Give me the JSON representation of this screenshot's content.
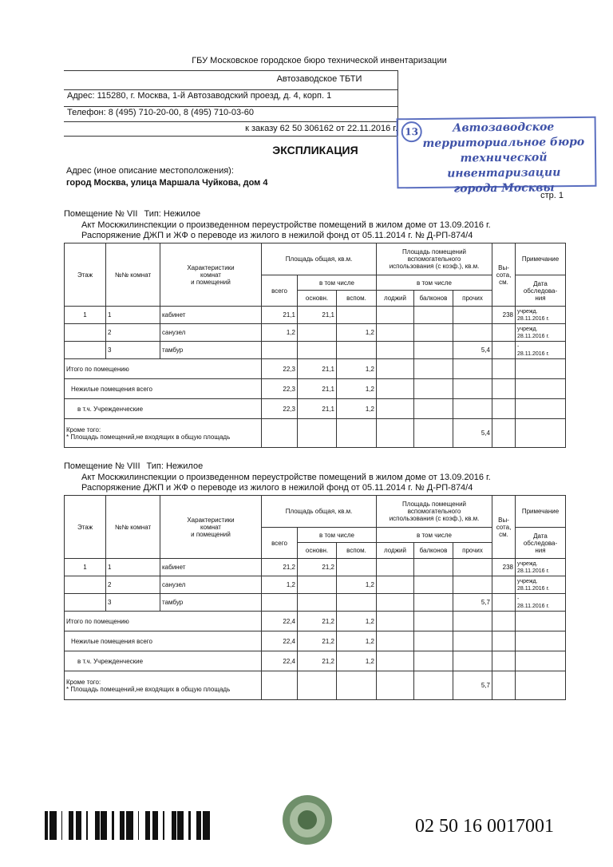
{
  "header": {
    "org": "ГБУ Московское городское бюро технической инвентаризации",
    "branch": "Автозаводское ТБТИ",
    "address": "Адрес: 115280, г. Москва, 1-й Автозаводский проезд, д. 4, корп. 1",
    "phone": "Телефон: 8 (495) 710-20-00, 8 (495) 710-03-60",
    "order": "к заказу 62 50 306162 от 22.11.2016 г."
  },
  "stamp": {
    "number": "13",
    "lines": [
      "Автозаводское",
      "территориальное бюро",
      "технической инвентаризации",
      "города Москвы"
    ]
  },
  "title": "ЭКСПЛИКАЦИЯ",
  "location": {
    "label": "Адрес (иное описание местоположения):",
    "value": "город Москва, улица Маршала Чуйкова, дом 4"
  },
  "page": "стр. 1",
  "table_header": {
    "floor": "Этаж",
    "rooms": "№№ комнат",
    "characteristics": [
      "Характеристики",
      "комнат",
      "и помещений"
    ],
    "total_area": "Площадь общая, кв.м.",
    "total_all": "всего",
    "total_incl": "в том числе",
    "main": "основн.",
    "aux": "вспом.",
    "aux_area": [
      "Площадь помещений",
      "вспомогательного",
      "использования (с коэф.), кв.м."
    ],
    "aux_incl": "в том числе",
    "loggia": "лоджий",
    "balcony": "балконов",
    "other": "прочих",
    "height": [
      "Вы-",
      "сота,",
      "см."
    ],
    "note": "Примечание",
    "survey_date": [
      "Дата",
      "обследова-",
      "ния"
    ]
  },
  "sections": [
    {
      "room": "Помещение № VII",
      "type": "Тип: Нежилое",
      "act_lines": [
        "Акт Москжилинспекции о произведенном переустройстве помещений в жилом доме от 13.09.2016 г.",
        "Распоряжение ДЖП и ЖФ о переводе из жилого в нежилой фонд от 05.11.2014 г. № Д-РП-874/4"
      ],
      "rows": [
        [
          "1",
          "1",
          "кабинет",
          "21,1",
          "21,1",
          null,
          null,
          null,
          null,
          "238",
          [
            "учрежд.",
            "28.11.2016 г."
          ]
        ],
        [
          null,
          "2",
          "санузел",
          "1,2",
          null,
          "1,2",
          null,
          null,
          null,
          null,
          [
            "учрежд.",
            "28.11.2016 г."
          ]
        ],
        [
          null,
          "3",
          "тамбур",
          null,
          null,
          null,
          null,
          null,
          "5,4",
          null,
          [
            "-",
            "28.11.2016 г."
          ]
        ]
      ],
      "totals": [
        {
          "label": [
            "Итого по помещению"
          ],
          "cells": [
            "22,3",
            "21,1",
            "1,2",
            null,
            null,
            null,
            null,
            null
          ]
        },
        {
          "label": [
            "Нежилые помещения всего"
          ],
          "cells": [
            "22,3",
            "21,1",
            "1,2",
            null,
            null,
            null,
            null,
            null
          ]
        },
        {
          "label": [
            "в т.ч. Учрежденческие"
          ],
          "cells": [
            "22,3",
            "21,1",
            "1,2",
            null,
            null,
            null,
            null,
            null
          ]
        },
        {
          "label": [
            "Кроме того:",
            "* Площадь помещений,не входящих в общую площадь"
          ],
          "cells": [
            null,
            null,
            null,
            null,
            null,
            "5,4",
            null,
            null
          ]
        }
      ]
    },
    {
      "room": "Помещение № VIII",
      "type": "Тип: Нежилое",
      "act_lines": [
        "Акт Москжилинспекции о произведенном переустройстве помещений в жилом доме от 13.09.2016 г.",
        "Распоряжение ДЖП и ЖФ о переводе из жилого в нежилой фонд от 05.11.2014 г. № Д-РП-874/4"
      ],
      "rows": [
        [
          "1",
          "1",
          "кабинет",
          "21,2",
          "21,2",
          null,
          null,
          null,
          null,
          "238",
          [
            "учрежд.",
            "28.11.2016 г."
          ]
        ],
        [
          null,
          "2",
          "санузел",
          "1,2",
          null,
          "1,2",
          null,
          null,
          null,
          null,
          [
            "учрежд.",
            "28.11.2016 г."
          ]
        ],
        [
          null,
          "3",
          "тамбур",
          null,
          null,
          null,
          null,
          null,
          "5,7",
          null,
          [
            "-",
            "28.11.2016 г."
          ]
        ]
      ],
      "totals": [
        {
          "label": [
            "Итого по помещению"
          ],
          "cells": [
            "22,4",
            "21,2",
            "1,2",
            null,
            null,
            null,
            null,
            null
          ]
        },
        {
          "label": [
            "Нежилые помещения всего"
          ],
          "cells": [
            "22,4",
            "21,2",
            "1,2",
            null,
            null,
            null,
            null,
            null
          ]
        },
        {
          "label": [
            "в т.ч. Учрежденческие"
          ],
          "cells": [
            "22,4",
            "21,2",
            "1,2",
            null,
            null,
            null,
            null,
            null
          ]
        },
        {
          "label": [
            "Кроме того:",
            "* Площадь помещений,не входящих в общую площадь"
          ],
          "cells": [
            null,
            null,
            null,
            null,
            null,
            "5,7",
            null,
            null
          ]
        }
      ]
    }
  ],
  "footer": {
    "number": "02 50 16 0017001"
  }
}
